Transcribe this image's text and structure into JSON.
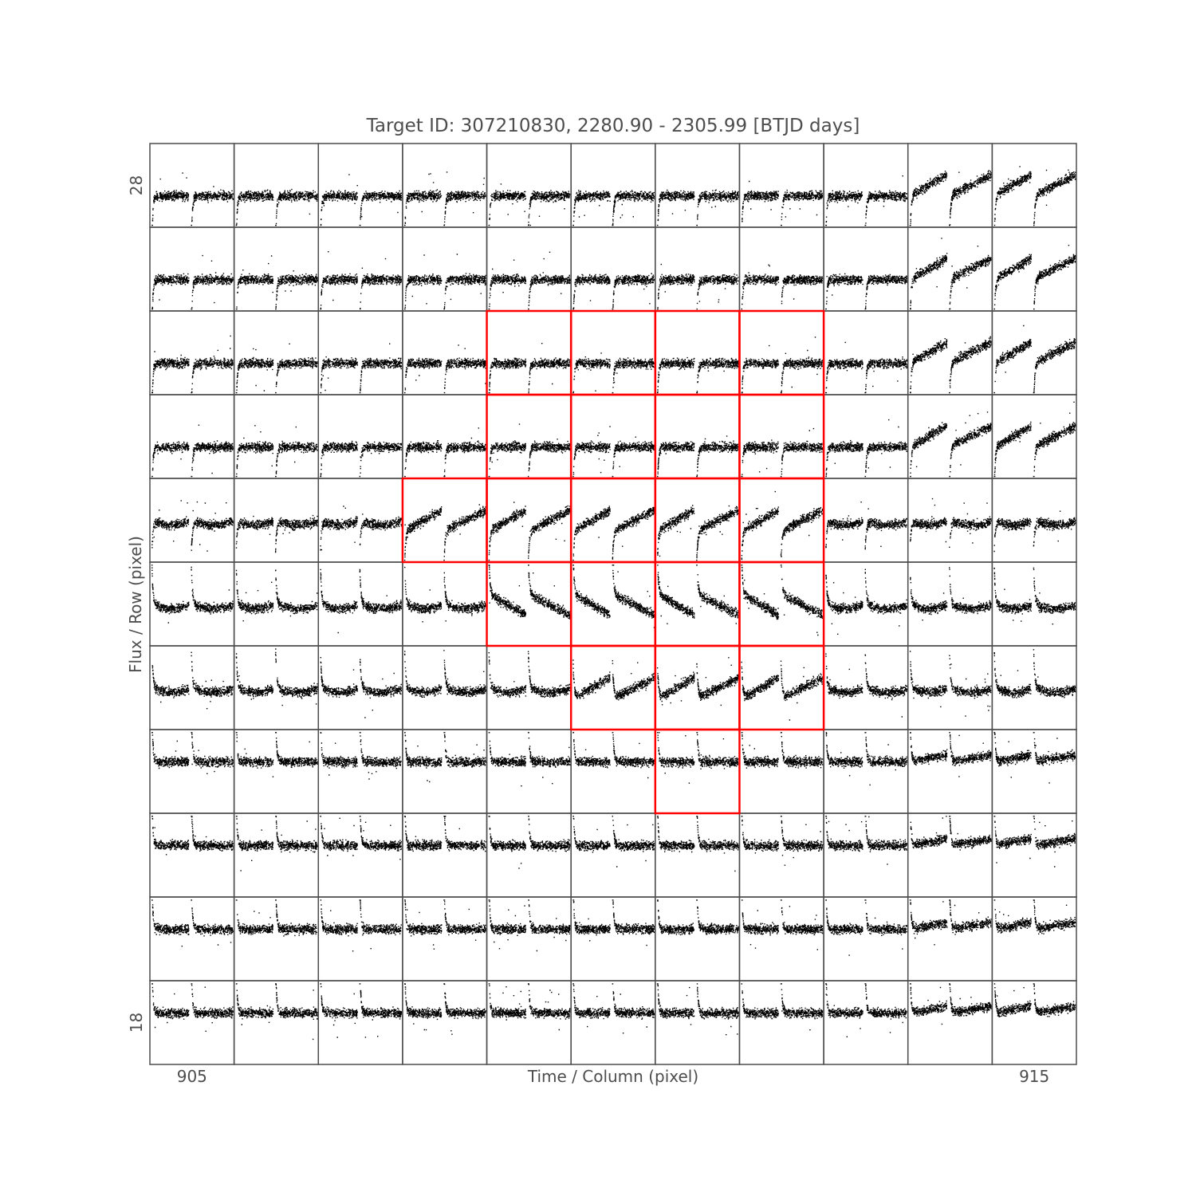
{
  "chart_data": {
    "type": "scatter",
    "title": "Target ID: 307210830, 2280.90 - 2305.99 [BTJD days]",
    "xlabel": "Time / Column (pixel)",
    "ylabel": "Flux / Row (pixel)",
    "x_tick_labels": [
      {
        "column": 905,
        "label": "905"
      },
      {
        "column": 915,
        "label": "915"
      }
    ],
    "y_tick_labels": [
      {
        "row": 28,
        "label": "28"
      },
      {
        "row": 18,
        "label": "18"
      }
    ],
    "columns": [
      905,
      906,
      907,
      908,
      909,
      910,
      911,
      912,
      913,
      914,
      915
    ],
    "rows": [
      28,
      27,
      26,
      25,
      24,
      23,
      22,
      21,
      20,
      19,
      18
    ],
    "time_range": [
      2280.9,
      2305.99
    ],
    "grid": false,
    "point_color": "#000000",
    "frame_color": "#4d4d4d",
    "aperture_color": "#ff0000",
    "aperture_mask": [
      [
        0,
        0,
        0,
        0,
        0,
        0,
        0,
        0,
        0,
        0,
        0
      ],
      [
        0,
        0,
        0,
        0,
        0,
        0,
        0,
        0,
        0,
        0,
        0
      ],
      [
        0,
        0,
        0,
        0,
        1,
        1,
        1,
        1,
        0,
        0,
        0
      ],
      [
        0,
        0,
        0,
        0,
        1,
        1,
        1,
        1,
        0,
        0,
        0
      ],
      [
        0,
        0,
        0,
        1,
        1,
        1,
        1,
        1,
        0,
        0,
        0
      ],
      [
        0,
        0,
        0,
        0,
        1,
        1,
        1,
        1,
        0,
        0,
        0
      ],
      [
        0,
        0,
        0,
        0,
        0,
        1,
        1,
        1,
        0,
        0,
        0
      ],
      [
        0,
        0,
        0,
        0,
        0,
        0,
        1,
        0,
        0,
        0,
        0
      ],
      [
        0,
        0,
        0,
        0,
        0,
        0,
        0,
        0,
        0,
        0,
        0
      ],
      [
        0,
        0,
        0,
        0,
        0,
        0,
        0,
        0,
        0,
        0,
        0
      ],
      [
        0,
        0,
        0,
        0,
        0,
        0,
        0,
        0,
        0,
        0,
        0
      ]
    ]
  }
}
